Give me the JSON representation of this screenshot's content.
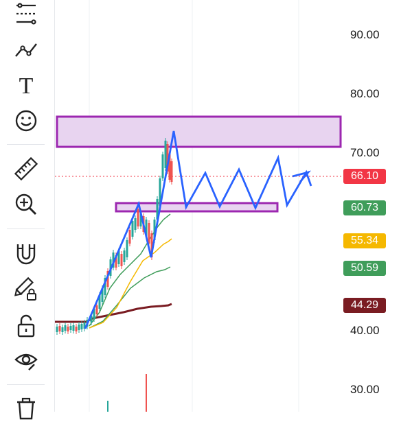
{
  "toolbar": {
    "tools": [
      {
        "name": "indicators-icon"
      },
      {
        "name": "trend-line-icon"
      },
      {
        "name": "text-icon",
        "glyph": "T"
      },
      {
        "name": "emoji-icon"
      },
      {
        "name": "ruler-icon"
      },
      {
        "name": "zoom-in-icon"
      },
      {
        "name": "magnet-icon"
      },
      {
        "name": "lock-drawing-icon"
      },
      {
        "name": "unlock-icon"
      },
      {
        "name": "visibility-icon"
      },
      {
        "name": "trash-icon"
      }
    ]
  },
  "price_axis": {
    "min": 28.5,
    "max": 95,
    "ticks": [
      "90.00",
      "80.00",
      "70.00",
      "40.00",
      "30.00"
    ]
  },
  "price_badges": [
    {
      "value": "66.10",
      "color": "#f23645"
    },
    {
      "value": "60.73",
      "color": "#3f9d5a"
    },
    {
      "value": "55.34",
      "color": "#f5b800"
    },
    {
      "value": "50.59",
      "color": "#3f9d5a"
    },
    {
      "value": "44.29",
      "color": "#7a1c22"
    }
  ],
  "colors": {
    "up_candle": "#26a69a",
    "down_candle": "#ef5350",
    "zigzag": "#2962ff",
    "zone": "#9c27b0",
    "zone_fill": "#e8d4f0",
    "ma_fast": "#3f9d5a",
    "ma_mid": "#f5b800",
    "ma_slow": "#7a1c22"
  }
}
